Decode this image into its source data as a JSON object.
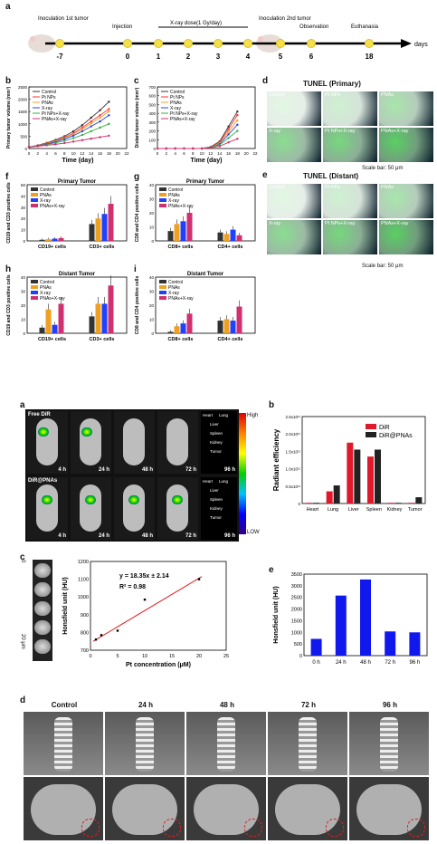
{
  "labels": {
    "a1": "a",
    "b1": "b",
    "c1": "c",
    "d1": "d",
    "e1": "e",
    "f1": "f",
    "g1": "g",
    "h1": "h",
    "i1": "i",
    "a2": "a",
    "b2": "b",
    "c2": "c",
    "d2": "d",
    "e2": "e"
  },
  "timeline": {
    "days": [
      "-7",
      "0",
      "1",
      "2",
      "3",
      "4",
      "5",
      "6",
      "18"
    ],
    "unit": "days",
    "events": [
      "Inoculation 1st tumor",
      "Injection",
      "X-ray dose(1 Gy/day)",
      "Inoculation 2nd tumor",
      "Observation",
      "Euthanasia"
    ]
  },
  "tunel": {
    "primary_title": "TUNEL (Primary)",
    "distant_title": "TUNEL (Distant)",
    "scale": "Scale bar: 50 μm",
    "groups": [
      "Control",
      "Pt NPs",
      "PNAs",
      "X-ray",
      "Pt NPs+X-ray",
      "PNAs+X-ray"
    ]
  },
  "imaging": {
    "free_label": "Free DiR",
    "dir_label": "DiR@PNAs",
    "times": [
      "4 h",
      "24 h",
      "48 h",
      "72 h",
      "96 h"
    ],
    "organs": [
      "Heart",
      "Lung",
      "Liver",
      "Spleen",
      "Kidney",
      "Tumor"
    ],
    "scale_high": "High",
    "scale_low": "LOW"
  },
  "ct_panel": {
    "depth_top": "0",
    "depth_bottom": "20 μm",
    "titles": [
      "Control",
      "24 h",
      "48 h",
      "72 h",
      "96 h"
    ]
  },
  "colors": {
    "control": "#333333",
    "ptnps": "#ff3333",
    "pnas": "#f0a020",
    "xray": "#2040ff",
    "ptx": "#30b040",
    "pnax": "#d03070",
    "red": "#e0182c",
    "black": "#222222",
    "blue": "#1018ee"
  },
  "chart_data": [
    {
      "id": "b_primary",
      "type": "line",
      "xlabel": "Time (day)",
      "ylabel": "Primary tumor volume (mm³)",
      "x": [
        0,
        2,
        4,
        6,
        8,
        10,
        12,
        14,
        16,
        18
      ],
      "xlim": [
        0,
        22
      ],
      "ylim": [
        0,
        2500
      ],
      "series": [
        {
          "name": "Control",
          "values": [
            60,
            130,
            230,
            350,
            500,
            700,
            950,
            1250,
            1550,
            1900
          ]
        },
        {
          "name": "Pt NPs",
          "values": [
            60,
            120,
            210,
            320,
            450,
            620,
            850,
            1100,
            1350,
            1600
          ]
        },
        {
          "name": "PNAs",
          "values": [
            60,
            115,
            200,
            300,
            420,
            580,
            790,
            1020,
            1250,
            1500
          ]
        },
        {
          "name": "X-ray",
          "values": [
            60,
            110,
            180,
            270,
            380,
            520,
            700,
            900,
            1100,
            1350
          ]
        },
        {
          "name": "Pt NPs+X-ray",
          "values": [
            60,
            100,
            160,
            230,
            310,
            420,
            550,
            700,
            850,
            1000
          ]
        },
        {
          "name": "PNAs+X-ray",
          "values": [
            60,
            90,
            130,
            170,
            220,
            280,
            340,
            400,
            460,
            520
          ]
        }
      ]
    },
    {
      "id": "c_distant",
      "type": "line",
      "xlabel": "Time (day)",
      "ylabel": "Distant tumor volume (mm³)",
      "x": [
        0,
        2,
        4,
        6,
        8,
        10,
        12,
        14,
        16,
        18
      ],
      "xlim": [
        0,
        22
      ],
      "ylim": [
        0,
        700
      ],
      "series": [
        {
          "name": "Control",
          "values": [
            0,
            0,
            0,
            0,
            0,
            0,
            20,
            80,
            250,
            420
          ]
        },
        {
          "name": "Pt NPs",
          "values": [
            0,
            0,
            0,
            0,
            0,
            0,
            18,
            70,
            220,
            380
          ]
        },
        {
          "name": "PNAs",
          "values": [
            0,
            0,
            0,
            0,
            0,
            0,
            16,
            60,
            190,
            320
          ]
        },
        {
          "name": "X-ray",
          "values": [
            0,
            0,
            0,
            0,
            0,
            0,
            14,
            50,
            160,
            270
          ]
        },
        {
          "name": "Pt NPs+X-ray",
          "values": [
            0,
            0,
            0,
            0,
            0,
            0,
            12,
            40,
            120,
            200
          ]
        },
        {
          "name": "PNAs+X-ray",
          "values": [
            0,
            0,
            0,
            0,
            0,
            0,
            8,
            25,
            70,
            110
          ]
        }
      ]
    },
    {
      "id": "f_primary",
      "type": "bar",
      "title": "Primary Tumor",
      "ylabel": "CD19 and CD3 positive cells",
      "ylim": [
        0,
        50
      ],
      "categories": [
        "CD19+ cells",
        "CD3+ cells"
      ],
      "series": [
        {
          "name": "Control",
          "values": [
            1,
            15
          ]
        },
        {
          "name": "PNAs",
          "values": [
            1.5,
            20
          ]
        },
        {
          "name": "X-ray",
          "values": [
            2,
            24
          ]
        },
        {
          "name": "PNAs+X-ray",
          "values": [
            2.5,
            33
          ]
        }
      ]
    },
    {
      "id": "g_primary",
      "type": "bar",
      "title": "Primary Tumor",
      "ylabel": "CD8 and CD4 positive cells",
      "ylim": [
        0,
        40
      ],
      "categories": [
        "CD8+ cells",
        "CD4+ cells"
      ],
      "series": [
        {
          "name": "Control",
          "values": [
            7,
            6
          ]
        },
        {
          "name": "PNAs",
          "values": [
            12,
            5
          ]
        },
        {
          "name": "X-ray",
          "values": [
            14,
            8
          ]
        },
        {
          "name": "PNAs+X-ray",
          "values": [
            20,
            4
          ]
        }
      ]
    },
    {
      "id": "h_distant",
      "type": "bar",
      "title": "Distant Tumor",
      "ylabel": "CD19 and CD3 positive cells",
      "ylim": [
        0,
        40
      ],
      "categories": [
        "CD19+ cells",
        "CD3+ cells"
      ],
      "series": [
        {
          "name": "Control",
          "values": [
            4,
            12
          ]
        },
        {
          "name": "PNAs",
          "values": [
            17,
            21
          ]
        },
        {
          "name": "X-ray",
          "values": [
            6,
            21
          ]
        },
        {
          "name": "PNAs+X-ray",
          "values": [
            21,
            34
          ]
        }
      ]
    },
    {
      "id": "i_distant",
      "type": "bar",
      "title": "Distant Tumor",
      "ylabel": "CD8 and CD4 positive cells",
      "ylim": [
        0,
        40
      ],
      "categories": [
        "CD8+ cells",
        "CD4+ cells"
      ],
      "series": [
        {
          "name": "Control",
          "values": [
            1,
            9
          ]
        },
        {
          "name": "PNAs",
          "values": [
            5,
            10
          ]
        },
        {
          "name": "X-ray",
          "values": [
            7,
            9
          ]
        },
        {
          "name": "PNAs+X-ray",
          "values": [
            14,
            19
          ]
        }
      ]
    },
    {
      "id": "b2_radiant",
      "type": "bar",
      "ylabel": "Radiant efficiency",
      "ylim": [
        0,
        2.5
      ],
      "categories": [
        "Heart",
        "Lung",
        "Liver",
        "Spleen",
        "Kidney",
        "Tumor"
      ],
      "series": [
        {
          "name": "DiR",
          "values": [
            0.02,
            0.35,
            1.75,
            1.35,
            0.02,
            0.02
          ]
        },
        {
          "name": "DiR@PNAs",
          "values": [
            0.02,
            0.52,
            1.55,
            1.55,
            0.02,
            0.18
          ]
        }
      ]
    },
    {
      "id": "c2_ct",
      "type": "scatter",
      "xlabel": "Pt concentration (μM)",
      "ylabel": "Honsfield unit (HU)",
      "xlim": [
        0,
        25
      ],
      "ylim": [
        700,
        1200
      ],
      "x": [
        1,
        2,
        5,
        10,
        20
      ],
      "values": [
        760,
        785,
        810,
        985,
        1100
      ],
      "fit": "y = 18.35x ± 2.14",
      "r2": "R² = 0.98"
    },
    {
      "id": "e2_hu",
      "type": "bar",
      "ylabel": "Honsfield unit (HU)",
      "ylim": [
        0,
        3500
      ],
      "categories": [
        "0 h",
        "24 h",
        "48 h",
        "72 h",
        "96 h"
      ],
      "values": [
        720,
        2580,
        3270,
        1040,
        1000
      ]
    }
  ]
}
